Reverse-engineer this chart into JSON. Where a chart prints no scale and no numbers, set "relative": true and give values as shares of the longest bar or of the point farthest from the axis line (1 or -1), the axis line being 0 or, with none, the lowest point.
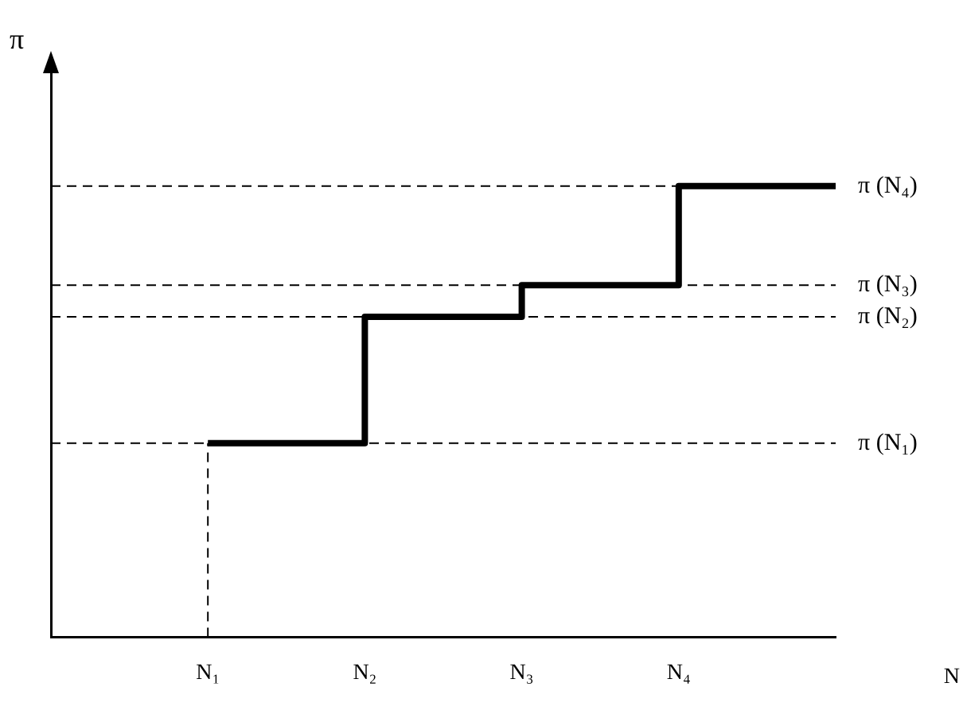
{
  "chart_data": {
    "type": "step",
    "relative": true,
    "xlabel": "N",
    "ylabel": "π",
    "categories": [
      null,
      "N₁",
      "N₂",
      "N₃",
      "N₄",
      null
    ],
    "series": [
      {
        "color": "#000000",
        "values": [
          null,
          0.43,
          0.71,
          0.78,
          1,
          1
        ]
      }
    ],
    "ref_lines": [
      {
        "axis": "y",
        "value": 1,
        "label": "π (N₄)",
        "line_style": "dashed"
      },
      {
        "axis": "y",
        "value": 0.78,
        "label": "π (N₃)",
        "line_style": "dashed"
      },
      {
        "axis": "y",
        "value": 0.71,
        "label": "π (N₂)",
        "line_style": "dashed"
      },
      {
        "axis": "y",
        "value": 0.43,
        "label": "π (N₁)",
        "line_style": "dashed"
      },
      {
        "axis": "x",
        "value": "N₁",
        "line_style": "dashed"
      }
    ],
    "grid": false,
    "legend": false
  }
}
